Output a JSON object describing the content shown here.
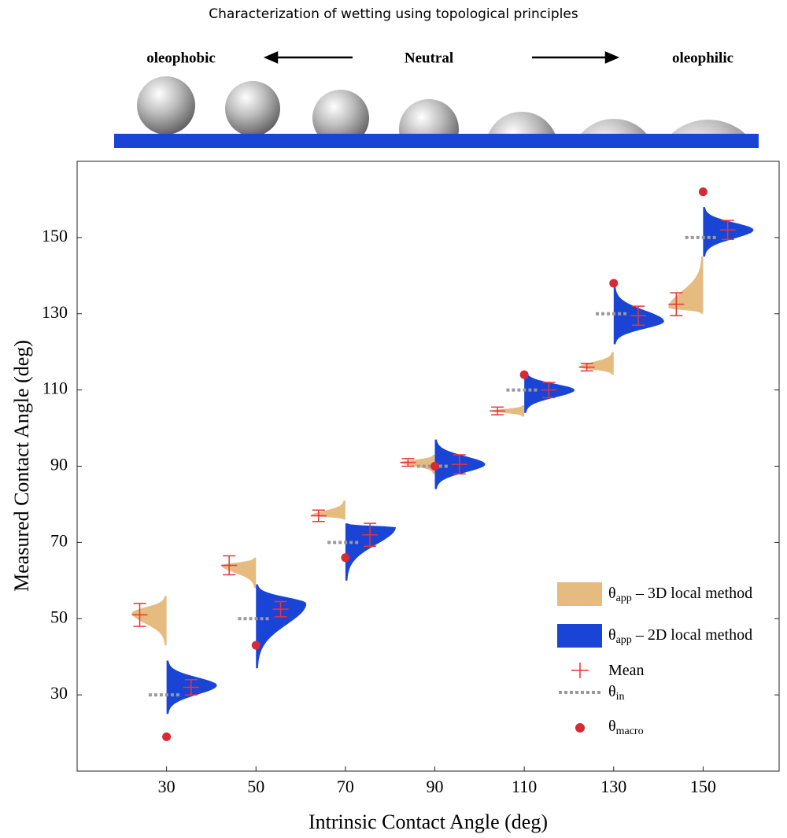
{
  "header": {
    "title": "Characterization of wetting using topological principles",
    "left_label": "oleophobic",
    "center_label": "Neutral",
    "right_label": "oleophilic"
  },
  "chart_data": {
    "type": "violin",
    "xlabel": "Intrinsic Contact Angle (deg)",
    "ylabel": "Measured Contact Angle (deg)",
    "xlim": [
      10,
      167
    ],
    "ylim": [
      10,
      170
    ],
    "xticks": [
      30,
      50,
      70,
      90,
      110,
      130,
      150
    ],
    "yticks": [
      30,
      50,
      70,
      90,
      110,
      130,
      150
    ],
    "x": [
      30,
      50,
      70,
      90,
      110,
      130,
      150
    ],
    "series": [
      {
        "name": "θ",
        "name_sub": "app",
        "name_rest": " – 3D local method",
        "color": "#e6bb80",
        "side": "left",
        "mean": [
          51,
          64,
          77,
          91,
          104.5,
          116,
          132.5
        ],
        "error": [
          3,
          2.5,
          1.5,
          1,
          1,
          1,
          3
        ],
        "min": [
          43,
          58,
          76,
          88,
          103,
          114,
          130
        ],
        "mode": [
          51.5,
          64,
          77,
          91,
          104.5,
          116,
          131.5
        ],
        "max": [
          56,
          66,
          81,
          93,
          106,
          120,
          145
        ]
      },
      {
        "name": "θ",
        "name_sub": "app",
        "name_rest": " – 2D local method",
        "color": "#1a44d6",
        "side": "right",
        "mean": [
          32,
          52.5,
          72,
          90.5,
          110,
          129.5,
          152
        ],
        "error": [
          2,
          2,
          3,
          2.5,
          2,
          2.5,
          2.5
        ],
        "min": [
          25,
          37,
          60,
          84,
          104,
          122,
          145
        ],
        "mode": [
          32.5,
          54,
          74,
          90.5,
          110,
          128,
          152
        ],
        "max": [
          39,
          59,
          75,
          97,
          115,
          137,
          158
        ]
      }
    ],
    "mean_name": "Mean",
    "mean_color": "#e8343a",
    "theta_in_name": "θ",
    "theta_in_sub": "in",
    "theta_in_color": "#999999",
    "macro_name": "θ",
    "macro_sub": "macro",
    "macro_color": "#d62b35",
    "macro": [
      19,
      43,
      66,
      90,
      114,
      138,
      162
    ]
  }
}
